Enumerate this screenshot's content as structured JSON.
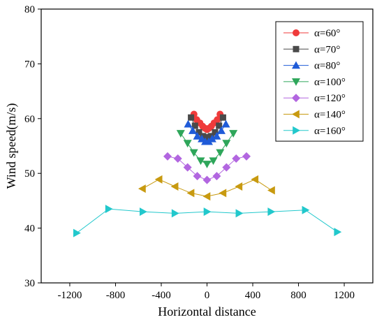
{
  "chart_data": {
    "type": "line",
    "title": "",
    "xlabel": "Horizontal distance",
    "ylabel": "Wind speed(m/s)",
    "xlim": [
      -1450,
      1450
    ],
    "ylim": [
      30,
      80
    ],
    "xticks": [
      -1200,
      -800,
      -400,
      0,
      400,
      800,
      1200
    ],
    "xtick_labels": [
      "-1200",
      "-800",
      "-400",
      "0",
      "400",
      "800",
      "1200"
    ],
    "yticks": [
      30,
      40,
      50,
      60,
      70,
      80
    ],
    "ytick_labels": [
      "30",
      "40",
      "50",
      "60",
      "70",
      "80"
    ],
    "grid": false,
    "legend_position": "top-right",
    "series": [
      {
        "name": "α=60°",
        "color": "#ef3b3b",
        "marker": "circle",
        "x": [
          -114,
          -90,
          -62,
          -38,
          -15,
          0,
          15,
          38,
          62,
          90,
          114
        ],
        "y": [
          60.8,
          59.8,
          59.2,
          58.6,
          58.2,
          58.0,
          58.2,
          58.6,
          59.2,
          59.8,
          60.8
        ]
      },
      {
        "name": "α=70°",
        "color": "#4a4a4a",
        "marker": "square",
        "x": [
          -140,
          -105,
          -70,
          -35,
          -10,
          10,
          35,
          70,
          105,
          140
        ],
        "y": [
          60.2,
          58.7,
          57.5,
          56.8,
          56.6,
          56.6,
          56.8,
          57.5,
          58.7,
          60.2
        ]
      },
      {
        "name": "α=80°",
        "color": "#1f5bd8",
        "marker": "triangle-up",
        "x": [
          -165,
          -125,
          -85,
          -45,
          -15,
          15,
          45,
          85,
          125,
          165
        ],
        "y": [
          59.0,
          57.8,
          56.8,
          56.3,
          55.8,
          55.8,
          56.3,
          56.8,
          57.8,
          59.0
        ]
      },
      {
        "name": "α=100°",
        "color": "#2ea65a",
        "marker": "triangle-down",
        "x": [
          -230,
          -170,
          -115,
          -55,
          0,
          55,
          115,
          170,
          230
        ],
        "y": [
          57.3,
          55.5,
          53.8,
          52.3,
          51.7,
          52.3,
          53.8,
          55.5,
          57.3
        ]
      },
      {
        "name": "α=120°",
        "color": "#b266e0",
        "marker": "diamond",
        "x": [
          -345,
          -255,
          -170,
          -85,
          0,
          85,
          170,
          255,
          345
        ],
        "y": [
          53.1,
          52.7,
          51.1,
          49.5,
          48.8,
          49.5,
          51.1,
          52.7,
          53.1
        ]
      },
      {
        "name": "α=140°",
        "color": "#c89a10",
        "marker": "triangle-left",
        "x": [
          -565,
          -420,
          -280,
          -140,
          0,
          140,
          280,
          420,
          565
        ],
        "y": [
          47.2,
          48.9,
          47.6,
          46.4,
          45.8,
          46.4,
          47.6,
          48.9,
          46.9
        ]
      },
      {
        "name": "α=160°",
        "color": "#22c8cc",
        "marker": "triangle-right",
        "x": [
          -1140,
          -860,
          -560,
          -280,
          0,
          280,
          560,
          860,
          1140
        ],
        "y": [
          39.1,
          43.5,
          43.0,
          42.7,
          43.0,
          42.7,
          43.0,
          43.3,
          39.3
        ]
      }
    ]
  }
}
